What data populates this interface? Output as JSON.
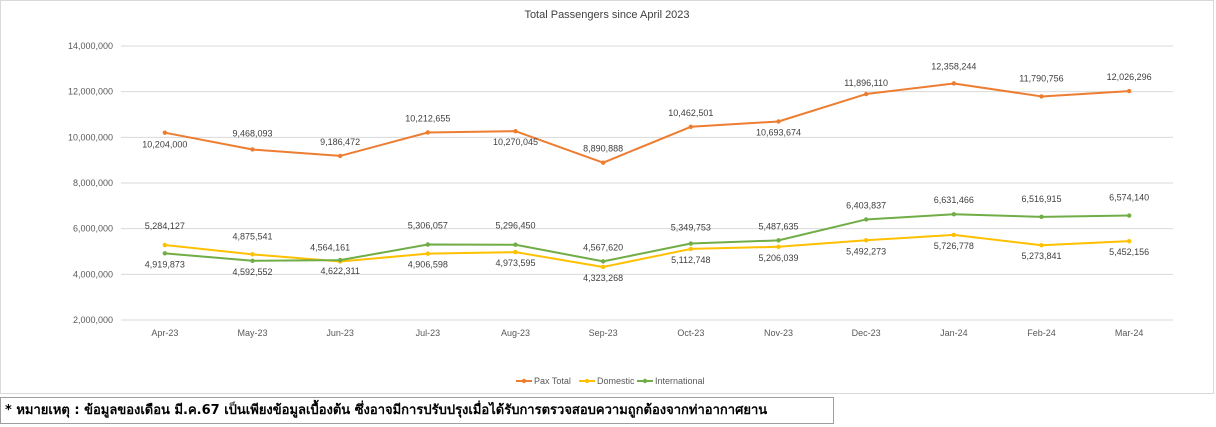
{
  "chart_data": {
    "type": "line",
    "title": "Total Passengers since April 2023",
    "categories": [
      "Apr-23",
      "May-23",
      "Jun-23",
      "Jul-23",
      "Aug-23",
      "Sep-23",
      "Oct-23",
      "Nov-23",
      "Dec-23",
      "Jan-24",
      "Feb-24",
      "Mar-24"
    ],
    "ylim": [
      2000000,
      14000000
    ],
    "yticks": [
      2000000,
      4000000,
      6000000,
      8000000,
      10000000,
      12000000,
      14000000
    ],
    "ytick_labels": [
      "2,000,000",
      "4,000,000",
      "6,000,000",
      "8,000,000",
      "10,000,000",
      "12,000,000",
      "14,000,000"
    ],
    "grid": true,
    "legend_position": "bottom",
    "series": [
      {
        "name": "Pax Total",
        "color": "#ED7D31",
        "values": [
          10204000,
          9468093,
          9186472,
          10212655,
          10270045,
          8890888,
          10462501,
          10693674,
          11896110,
          12358244,
          11790756,
          12026296
        ],
        "labels": [
          "10,204,000",
          "9,468,093",
          "9,186,472",
          "10,212,655",
          "10,270,045",
          "8,890,888",
          "10,462,501",
          "10,693,674",
          "11,896,110",
          "12,358,244",
          "11,790,756",
          "12,026,296"
        ]
      },
      {
        "name": "Domestic",
        "color": "#FFC000",
        "values": [
          5284127,
          4875541,
          4564161,
          4906598,
          4973595,
          4323268,
          5112748,
          5206039,
          5492273,
          5726778,
          5273841,
          5452156
        ],
        "labels": [
          "5,284,127",
          "4,875,541",
          "4,564,161",
          "4,906,598",
          "4,973,595",
          "4,323,268",
          "5,112,748",
          "5,206,039",
          "5,492,273",
          "5,726,778",
          "5,273,841",
          "5,452,156"
        ]
      },
      {
        "name": "International",
        "color": "#70AD47",
        "values": [
          4919873,
          4592552,
          4622311,
          5306057,
          5296450,
          4567620,
          5349753,
          5487635,
          6403837,
          6631466,
          6516915,
          6574140
        ],
        "labels": [
          "4,919,873",
          "4,592,552",
          "4,622,311",
          "5,306,057",
          "5,296,450",
          "4,567,620",
          "5,349,753",
          "5,487,635",
          "6,403,837",
          "6,631,466",
          "6,516,915",
          "6,574,140"
        ]
      }
    ]
  },
  "note": "* หมายเหตุ : ข้อมูลของเดือน มี.ค.67 เป็นเพียงข้อมูลเบื้องต้น ซึ่งอาจมีการปรับปรุงเมื่อได้รับการตรวจสอบความถูกต้องจากท่าอากาศยาน"
}
